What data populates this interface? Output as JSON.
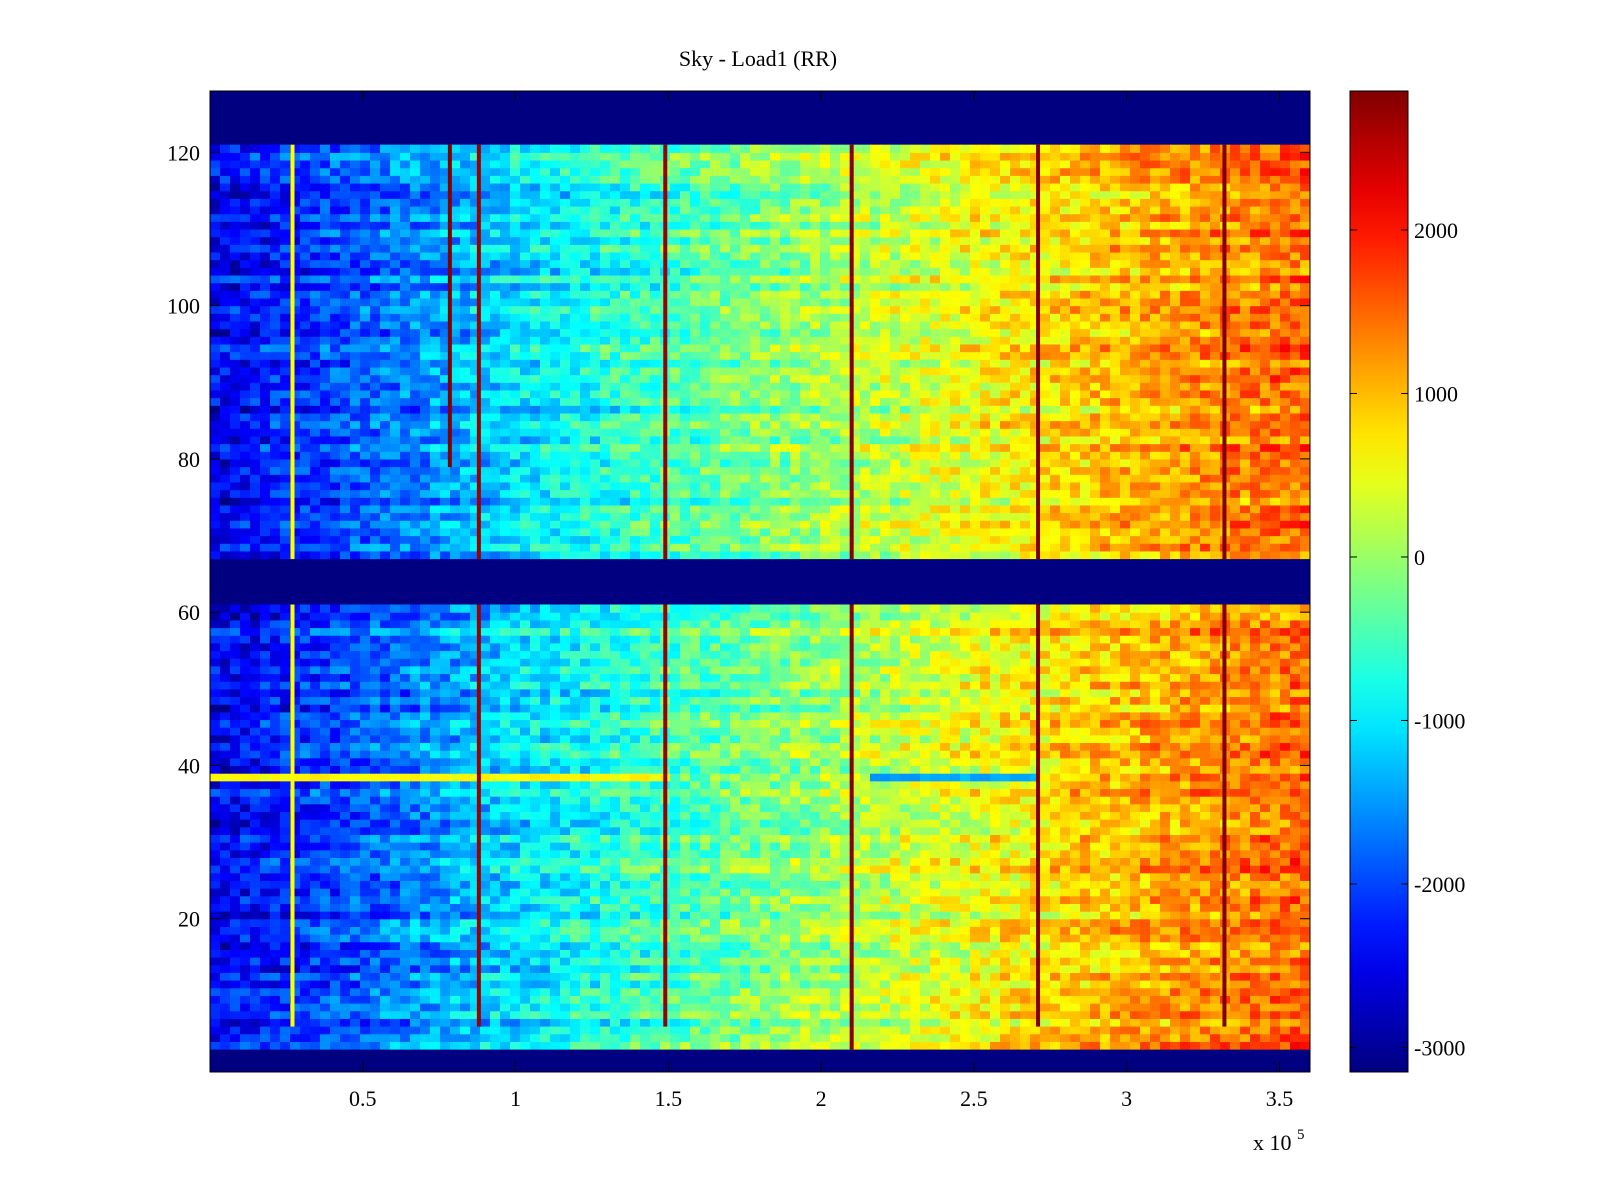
{
  "chart_data": {
    "type": "heatmap",
    "title": "Sky - Load1 (RR)",
    "xlabel": "",
    "ylabel": "",
    "x_multiplier": "x 10",
    "x_multiplier_exponent": "5",
    "xlim": [
      0,
      3.6
    ],
    "ylim": [
      0,
      128
    ],
    "x_ticks": [
      0.5,
      1,
      1.5,
      2,
      2.5,
      3,
      3.5
    ],
    "x_tick_labels": [
      "0.5",
      "1",
      "1.5",
      "2",
      "2.5",
      "3",
      "3.5"
    ],
    "y_ticks": [
      20,
      40,
      60,
      80,
      100,
      120
    ],
    "y_tick_labels": [
      "20",
      "40",
      "60",
      "80",
      "100",
      "120"
    ],
    "colormap": "jet",
    "clim": [
      -3150,
      2850
    ],
    "colorbar_ticks": [
      2000,
      1000,
      0,
      -1000,
      -2000,
      -3000
    ],
    "colorbar_tick_labels": [
      "2000",
      "1000",
      "0",
      "-1000",
      "-2000",
      "-3000"
    ],
    "background_value": -3150,
    "blank_row_ranges": [
      [
        121,
        128
      ],
      [
        61,
        67
      ],
      [
        0,
        3
      ]
    ],
    "x_gradient": {
      "x": [
        0,
        0.5,
        1,
        1.5,
        2,
        2.5,
        3,
        3.6
      ],
      "value": [
        -2500,
        -1900,
        -1100,
        -500,
        0,
        500,
        1000,
        1500
      ]
    },
    "spike_lines": [
      {
        "x": 0.27,
        "value": 600,
        "rows": [
          6,
          121
        ]
      },
      {
        "x": 0.88,
        "value": 2700,
        "rows": [
          6,
          121
        ]
      },
      {
        "x": 1.49,
        "value": 2700,
        "rows": [
          6,
          121
        ]
      },
      {
        "x": 2.1,
        "value": 2800,
        "rows": [
          3,
          121
        ]
      },
      {
        "x": 2.71,
        "value": 2850,
        "rows": [
          6,
          121
        ]
      },
      {
        "x": 3.32,
        "value": 2850,
        "rows": [
          6,
          121
        ]
      },
      {
        "x": 0.785,
        "value": 2850,
        "rows": [
          79,
          121
        ]
      }
    ],
    "anomaly_row": {
      "row": 38.5,
      "segments": [
        {
          "x": [
            0,
            1.5
          ],
          "value": 600
        },
        {
          "x": [
            2.15,
            2.7
          ],
          "value": -1400
        }
      ]
    }
  }
}
